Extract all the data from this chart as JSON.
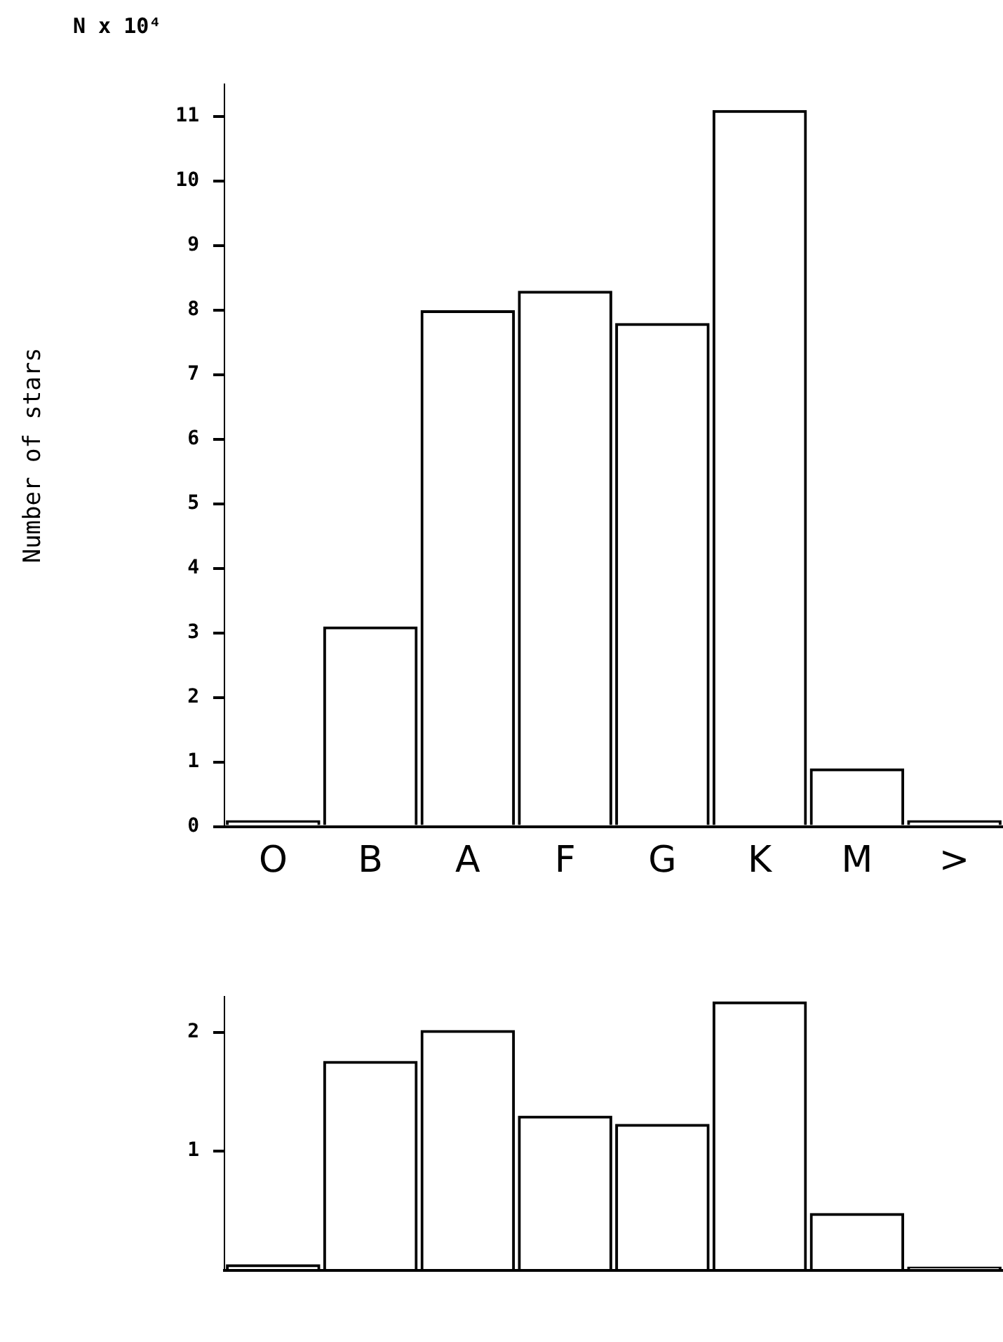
{
  "chart_data": [
    {
      "type": "bar",
      "ylabel": "Number of stars",
      "annotations": [
        "N x 10⁴"
      ],
      "categories": [
        "O",
        "B",
        "A",
        "F",
        "G",
        "K",
        "M",
        ">"
      ],
      "series": [
        {
          "color": "#000000",
          "values": [
            0.1,
            3.1,
            8.0,
            8.3,
            7.8,
            11.1,
            0.9,
            0.1
          ]
        }
      ],
      "ylim": [
        0,
        11.5
      ],
      "yticks": [
        0,
        1,
        2,
        3,
        4,
        5,
        6,
        7,
        8,
        9,
        10,
        11
      ],
      "grid": false,
      "legend": false
    },
    {
      "type": "bar",
      "categories": [
        null,
        null,
        null,
        null,
        null,
        null,
        null,
        null
      ],
      "series": [
        {
          "color": "#000000",
          "values": [
            0.05,
            1.76,
            2.02,
            1.3,
            1.23,
            2.26,
            0.48,
            0.03
          ]
        }
      ],
      "ylim": [
        0,
        2.3
      ],
      "yticks": [
        1,
        2
      ],
      "grid": false,
      "legend": false
    }
  ]
}
